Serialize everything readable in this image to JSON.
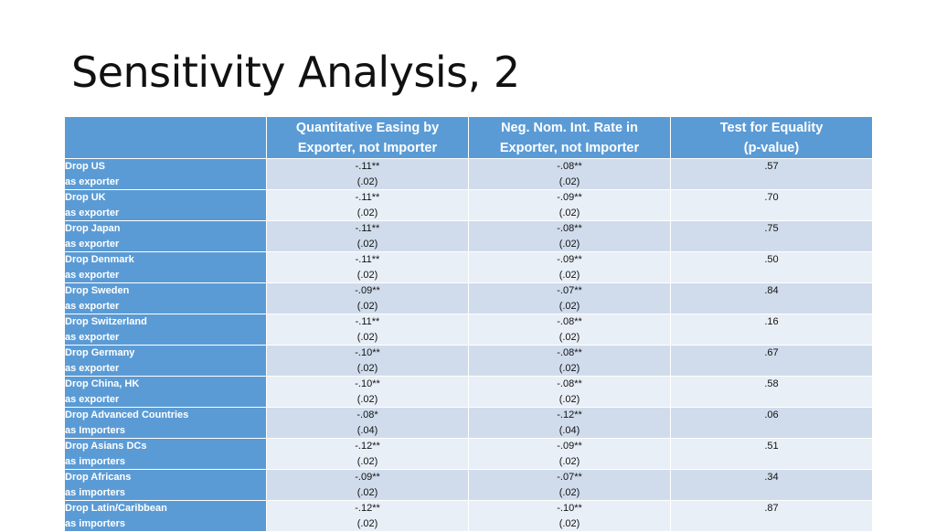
{
  "title": "Sensitivity Analysis, 2",
  "table": {
    "headers": [
      {
        "line1": "",
        "line2": ""
      },
      {
        "line1": "Quantitative Easing by",
        "line2": "Exporter, not Importer"
      },
      {
        "line1": "Neg. Nom. Int. Rate in",
        "line2": "Exporter, not Importer"
      },
      {
        "line1": "Test for Equality",
        "line2": "(p-value)"
      }
    ],
    "rows": [
      {
        "label1": "Drop US",
        "label2": "as exporter",
        "qe_coef": "-.11**",
        "qe_se": "(.02)",
        "nir_coef": "-.08**",
        "nir_se": "(.02)",
        "pvalue": ".57"
      },
      {
        "label1": "Drop UK",
        "label2": "as exporter",
        "qe_coef": "-.11**",
        "qe_se": "(.02)",
        "nir_coef": "-.09**",
        "nir_se": "(.02)",
        "pvalue": ".70"
      },
      {
        "label1": "Drop Japan",
        "label2": "as exporter",
        "qe_coef": "-.11**",
        "qe_se": "(.02)",
        "nir_coef": "-.08**",
        "nir_se": "(.02)",
        "pvalue": ".75"
      },
      {
        "label1": "Drop Denmark",
        "label2": "as exporter",
        "qe_coef": "-.11**",
        "qe_se": "(.02)",
        "nir_coef": "-.09**",
        "nir_se": "(.02)",
        "pvalue": ".50"
      },
      {
        "label1": "Drop Sweden",
        "label2": "as exporter",
        "qe_coef": "-.09**",
        "qe_se": "(.02)",
        "nir_coef": "-.07**",
        "nir_se": "(.02)",
        "pvalue": ".84"
      },
      {
        "label1": "Drop Switzerland",
        "label2": "as exporter",
        "qe_coef": "-.11**",
        "qe_se": "(.02)",
        "nir_coef": "-.08**",
        "nir_se": "(.02)",
        "pvalue": ".16"
      },
      {
        "label1": "Drop Germany",
        "label2": "as exporter",
        "qe_coef": "-.10**",
        "qe_se": "(.02)",
        "nir_coef": "-.08**",
        "nir_se": "(.02)",
        "pvalue": ".67"
      },
      {
        "label1": "Drop China, HK",
        "label2": "as exporter",
        "qe_coef": "-.10**",
        "qe_se": "(.02)",
        "nir_coef": "-.08**",
        "nir_se": "(.02)",
        "pvalue": ".58"
      },
      {
        "label1": "Drop Advanced Countries",
        "label2": "as Importers",
        "qe_coef": "-.08*",
        "qe_se": "(.04)",
        "nir_coef": "-.12**",
        "nir_se": "(.04)",
        "pvalue": ".06"
      },
      {
        "label1": "Drop Asians DCs",
        "label2": "as importers",
        "qe_coef": "-.12**",
        "qe_se": "(.02)",
        "nir_coef": "-.09**",
        "nir_se": "(.02)",
        "pvalue": ".51"
      },
      {
        "label1": "Drop Africans",
        "label2": "as importers",
        "qe_coef": "-.09**",
        "qe_se": "(.02)",
        "nir_coef": "-.07**",
        "nir_se": "(.02)",
        "pvalue": ".34"
      },
      {
        "label1": "Drop Latin/Caribbean",
        "label2": "as importers",
        "qe_coef": "-.12**",
        "qe_se": "(.02)",
        "nir_coef": "-.10**",
        "nir_se": "(.02)",
        "pvalue": ".87"
      }
    ]
  },
  "colors": {
    "header_bg": "#5b9bd5",
    "row_odd_bg": "#d0dcec",
    "row_even_bg": "#e9eff7"
  }
}
